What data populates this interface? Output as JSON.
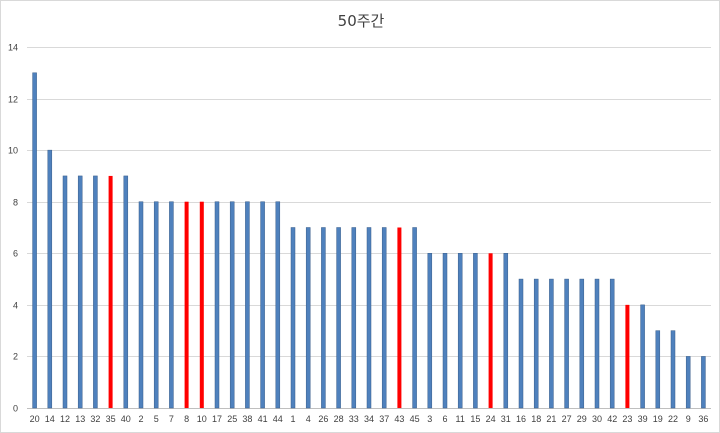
{
  "chart_data": {
    "type": "bar",
    "title": "50주간",
    "xlabel": "",
    "ylabel": "",
    "ylim": [
      0,
      14
    ],
    "yticks": [
      0,
      2,
      4,
      6,
      8,
      10,
      12,
      14
    ],
    "grid": true,
    "legend": "none",
    "categories": [
      "20",
      "14",
      "12",
      "13",
      "32",
      "35",
      "40",
      "2",
      "5",
      "7",
      "8",
      "10",
      "17",
      "25",
      "38",
      "41",
      "44",
      "1",
      "4",
      "26",
      "28",
      "33",
      "34",
      "37",
      "43",
      "45",
      "3",
      "6",
      "11",
      "15",
      "24",
      "31",
      "16",
      "18",
      "21",
      "27",
      "29",
      "30",
      "42",
      "23",
      "39",
      "19",
      "22",
      "9",
      "36"
    ],
    "values": [
      13,
      10,
      9,
      9,
      9,
      9,
      9,
      8,
      8,
      8,
      8,
      8,
      8,
      8,
      8,
      8,
      8,
      7,
      7,
      7,
      7,
      7,
      7,
      7,
      7,
      7,
      6,
      6,
      6,
      6,
      6,
      6,
      5,
      5,
      5,
      5,
      5,
      5,
      5,
      4,
      4,
      3,
      3,
      2,
      2
    ],
    "highlighted": [
      "35",
      "8",
      "10",
      "43",
      "24",
      "23"
    ],
    "colors": {
      "bar": "#4f81bd",
      "bar_stroke": "#385d8a",
      "highlight": "#ff0000"
    }
  }
}
